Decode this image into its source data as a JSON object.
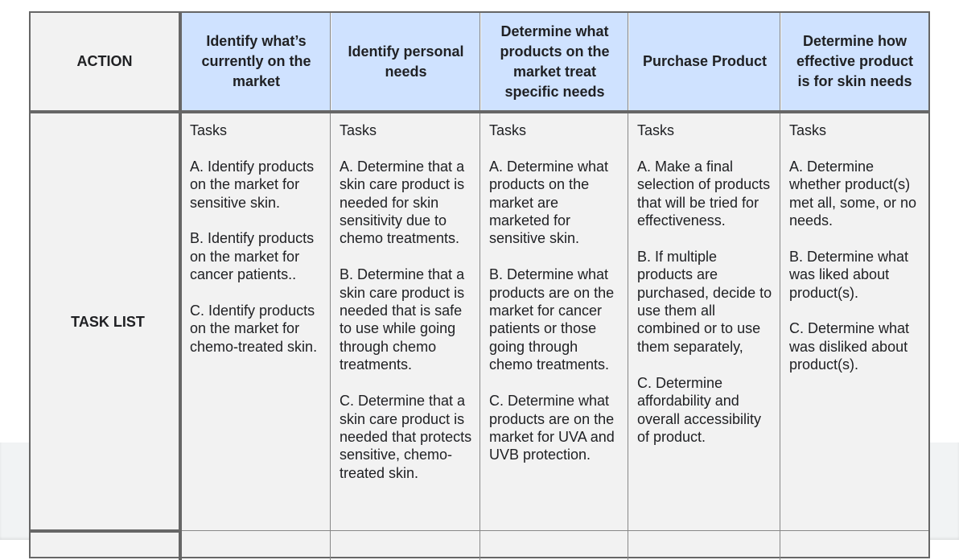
{
  "table": {
    "corner_label": "ACTION",
    "row_label": "TASK LIST",
    "columns": [
      {
        "header": "Identify what’s currently on the market",
        "tasks": "Tasks\n\nA.  Identify products on the market for sensitive skin.\n\nB. Identify products on the market for cancer patients..\n\nC. Identify products on the market for chemo-treated skin."
      },
      {
        "header": "Identify personal needs",
        "tasks": "Tasks\n\nA.  Determine that a skin care product is needed for skin sensitivity due to chemo treatments.\n\nB. Determine that a skin care product is needed that is safe to use while going through chemo treatments.\n\nC. Determine that a skin care product is needed that protects sensitive, chemo-treated skin."
      },
      {
        "header": "Determine what products on the market treat specific needs",
        "tasks": "Tasks\n\nA. Determine what products on the market are marketed for sensitive skin.\n\nB. Determine what products are on the market for cancer patients or those going through chemo treatments.\n\nC. Determine what products are on the market for UVA and UVB protection."
      },
      {
        "header": "Purchase Product",
        "tasks": "Tasks\n\nA.  Make a final selection of products that will be tried for effectiveness.\n\nB. If multiple products are purchased, decide to use them all combined or to use them separately,\n\nC. Determine affordability and overall accessibility of product."
      },
      {
        "header": "Determine how effective product is for skin needs",
        "tasks": "Tasks\n\nA.  Determine whether product(s) met all, some, or no needs.\n\nB. Determine what was liked about product(s).\n\nC. Determine what was disliked about product(s)."
      }
    ]
  }
}
